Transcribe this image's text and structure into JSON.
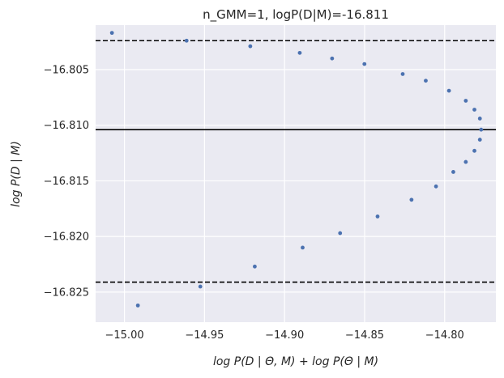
{
  "chart_data": {
    "type": "scatter",
    "title": "n_GMM=1, logP(D|M)=-16.811",
    "xlabel": "log P(D | Θ, M) + log P(Θ | M)",
    "ylabel": "log P(D | M)",
    "xlim": [
      -15.018,
      -14.768
    ],
    "ylim": [
      -16.8277,
      -16.801
    ],
    "xticks": [
      -15.0,
      -14.95,
      -14.9,
      -14.85,
      -14.8
    ],
    "xtick_labels": [
      "−15.00",
      "−14.95",
      "−14.90",
      "−14.85",
      "−14.80"
    ],
    "yticks": [
      -16.805,
      -16.81,
      -16.815,
      -16.82,
      -16.825
    ],
    "ytick_labels": [
      "−16.805",
      "−16.810",
      "−16.815",
      "−16.820",
      "−16.825"
    ],
    "grid": true,
    "hlines": [
      {
        "y": -16.8024,
        "style": "dashed"
      },
      {
        "y": -16.8104,
        "style": "solid"
      },
      {
        "y": -16.8241,
        "style": "dashed"
      }
    ],
    "point_color": "#4c72b0",
    "points": [
      {
        "x": -15.0078,
        "y": -16.8017
      },
      {
        "x": -14.9612,
        "y": -16.8024
      },
      {
        "x": -14.9214,
        "y": -16.8029
      },
      {
        "x": -14.8905,
        "y": -16.8035
      },
      {
        "x": -14.8703,
        "y": -16.804
      },
      {
        "x": -14.8501,
        "y": -16.8045
      },
      {
        "x": -14.8262,
        "y": -16.8054
      },
      {
        "x": -14.8118,
        "y": -16.806
      },
      {
        "x": -14.7973,
        "y": -16.8069
      },
      {
        "x": -14.7868,
        "y": -16.8078
      },
      {
        "x": -14.7814,
        "y": -16.8086
      },
      {
        "x": -14.778,
        "y": -16.8094
      },
      {
        "x": -14.7772,
        "y": -16.8104
      },
      {
        "x": -14.778,
        "y": -16.8113
      },
      {
        "x": -14.7814,
        "y": -16.8123
      },
      {
        "x": -14.7868,
        "y": -16.8133
      },
      {
        "x": -14.7946,
        "y": -16.8142
      },
      {
        "x": -14.8054,
        "y": -16.8155
      },
      {
        "x": -14.8207,
        "y": -16.8167
      },
      {
        "x": -14.8419,
        "y": -16.8182
      },
      {
        "x": -14.8653,
        "y": -16.8197
      },
      {
        "x": -14.8887,
        "y": -16.821
      },
      {
        "x": -14.9186,
        "y": -16.8227
      },
      {
        "x": -14.9526,
        "y": -16.8245
      },
      {
        "x": -14.9916,
        "y": -16.8262
      }
    ]
  }
}
